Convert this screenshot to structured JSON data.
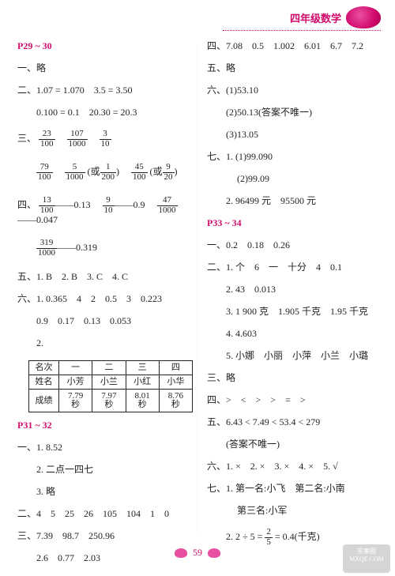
{
  "header": {
    "title": "四年级数学"
  },
  "left": {
    "p1_title": "P29 ~ 30",
    "l1": "一、略",
    "l2": "二、1.07 = 1.070　3.5 = 3.50",
    "l3": "0.100 = 0.1　20.30 = 20.3",
    "l4_pre": "三、",
    "f1n": "23",
    "f1d": "100",
    "f2n": "107",
    "f2d": "1000",
    "f3n": "3",
    "f3d": "10",
    "f4n": "79",
    "f4d": "100",
    "f5n": "5",
    "f5d": "1000",
    "f5an": "1",
    "f5ad": "200",
    "f6n": "45",
    "f6d": "100",
    "f6an": "9",
    "f6ad": "20",
    "l6_pre": "四、",
    "g1n": "13",
    "g1d": "100",
    "g1v": "——0.13",
    "g2n": "9",
    "g2d": "10",
    "g2v": "——0.9",
    "g3n": "47",
    "g3d": "1000",
    "g3v": "——0.047",
    "g4n": "319",
    "g4d": "1000",
    "g4v": "——0.319",
    "l8": "五、1. B　2. B　3. C　4. C",
    "l9": "六、1. 0.365　4　2　0.5　3　0.223",
    "l10": "0.9　0.17　0.13　0.053",
    "l11": "2.",
    "table": {
      "r0": [
        "名次",
        "一",
        "二",
        "三",
        "四"
      ],
      "r1": [
        "姓名",
        "小芳",
        "小兰",
        "小红",
        "小华"
      ],
      "r2": [
        "成绩",
        "7.79 秒",
        "7.97 秒",
        "8.01 秒",
        "8.76 秒"
      ]
    },
    "p2_title": "P31 ~ 32",
    "l12": "一、1. 8.52",
    "l13": "2. 二点一四七",
    "l14": "3. 略",
    "l15": "二、4　5　25　26　105　104　1　0",
    "l16": "三、7.39　98.7　250.96",
    "l17": "2.6　0.77　2.03"
  },
  "right": {
    "l1": "四、7.08　0.5　1.002　6.01　6.7　7.2",
    "l2": "五、略",
    "l3": "六、(1)53.10",
    "l4": "(2)50.13(答案不唯一)",
    "l5": "(3)13.05",
    "l6": "七、1. (1)99.090",
    "l7": "(2)99.09",
    "l8": "2. 96499 元　95500 元",
    "p3_title": "P33 ~ 34",
    "l9": "一、0.2　0.18　0.26",
    "l10": "二、1. 个　6　一　十分　4　0.1",
    "l11": "2. 43　0.013",
    "l12": "3. 1 900 克　1.905 千克　1.95 千克",
    "l13": "4. 4.603",
    "l14": "5. 小娜　小丽　小萍　小兰　小璐",
    "l15": "三、略",
    "l16": "四、>　<　>　>　=　>",
    "l17": "五、6.43 < 7.49 < 53.4 < 279",
    "l18": "(答案不唯一)",
    "l19": "六、1. ×　2. ×　3. ×　4. ×　5. √",
    "l20": "七、1. 第一名:小飞　第二名:小南",
    "l21": "第三名:小军",
    "l22a": "2. 2 ÷ 5 = ",
    "hfn": "2",
    "hfd": "5",
    "l22b": " = 0.4(千克)"
  },
  "footer": {
    "page": "59"
  },
  "watermark": {
    "l1": "答案圈",
    "l2": "MXQE.COM"
  }
}
